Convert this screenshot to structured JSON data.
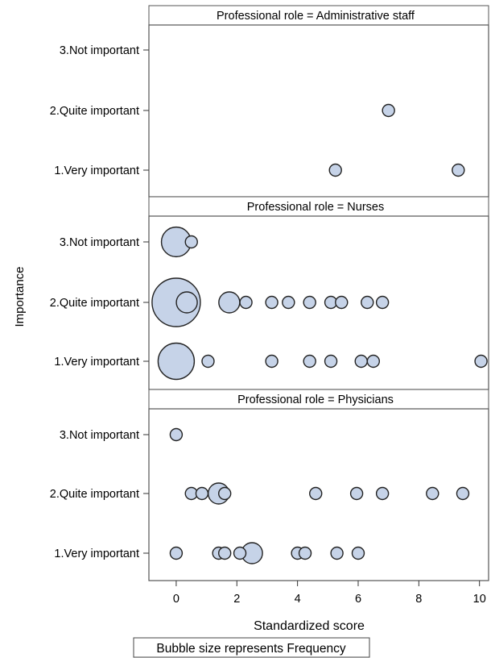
{
  "chart_data": {
    "type": "scatter",
    "encoding": "bubble",
    "ylabel": "Importance",
    "xlabel": "Standardized score",
    "size_note": "Bubble size represents Frequency",
    "categories": [
      "3.Not important",
      "2.Quite important",
      "1.Very important"
    ],
    "xlim": [
      -0.9,
      10.3
    ],
    "xticks": [
      0,
      2,
      4,
      6,
      8,
      10
    ],
    "grid": false,
    "colors": {
      "fill": "#c6d3e8",
      "stroke": "#222222",
      "frame": "#555555"
    },
    "panels": [
      {
        "title": "Professional role = Administrative staff",
        "points": [
          {
            "x": 7.0,
            "y": "2.Quite important",
            "size": 1
          },
          {
            "x": 5.25,
            "y": "1.Very important",
            "size": 1
          },
          {
            "x": 9.3,
            "y": "1.Very important",
            "size": 1
          }
        ]
      },
      {
        "title": "Professional role = Nurses",
        "points": [
          {
            "x": 0.0,
            "y": "3.Not important",
            "size": 6
          },
          {
            "x": 0.5,
            "y": "3.Not important",
            "size": 1
          },
          {
            "x": 0.0,
            "y": "2.Quite important",
            "size": 16
          },
          {
            "x": 0.35,
            "y": "2.Quite important",
            "size": 3
          },
          {
            "x": 1.75,
            "y": "2.Quite important",
            "size": 3
          },
          {
            "x": 2.3,
            "y": "2.Quite important",
            "size": 1
          },
          {
            "x": 3.15,
            "y": "2.Quite important",
            "size": 1
          },
          {
            "x": 3.7,
            "y": "2.Quite important",
            "size": 1
          },
          {
            "x": 4.4,
            "y": "2.Quite important",
            "size": 1
          },
          {
            "x": 5.1,
            "y": "2.Quite important",
            "size": 1
          },
          {
            "x": 5.45,
            "y": "2.Quite important",
            "size": 1
          },
          {
            "x": 6.3,
            "y": "2.Quite important",
            "size": 1
          },
          {
            "x": 6.8,
            "y": "2.Quite important",
            "size": 1
          },
          {
            "x": 0.0,
            "y": "1.Very important",
            "size": 9
          },
          {
            "x": 1.05,
            "y": "1.Very important",
            "size": 1
          },
          {
            "x": 3.15,
            "y": "1.Very important",
            "size": 1
          },
          {
            "x": 4.4,
            "y": "1.Very important",
            "size": 1
          },
          {
            "x": 5.1,
            "y": "1.Very important",
            "size": 1
          },
          {
            "x": 6.1,
            "y": "1.Very important",
            "size": 1
          },
          {
            "x": 6.5,
            "y": "1.Very important",
            "size": 1
          },
          {
            "x": 10.05,
            "y": "1.Very important",
            "size": 1
          }
        ]
      },
      {
        "title": "Professional role = Physicians",
        "points": [
          {
            "x": 0.0,
            "y": "3.Not important",
            "size": 1
          },
          {
            "x": 0.5,
            "y": "2.Quite important",
            "size": 1
          },
          {
            "x": 0.85,
            "y": "2.Quite important",
            "size": 1
          },
          {
            "x": 1.4,
            "y": "2.Quite important",
            "size": 3
          },
          {
            "x": 1.6,
            "y": "2.Quite important",
            "size": 1
          },
          {
            "x": 4.6,
            "y": "2.Quite important",
            "size": 1
          },
          {
            "x": 5.95,
            "y": "2.Quite important",
            "size": 1
          },
          {
            "x": 6.8,
            "y": "2.Quite important",
            "size": 1
          },
          {
            "x": 8.45,
            "y": "2.Quite important",
            "size": 1
          },
          {
            "x": 9.45,
            "y": "2.Quite important",
            "size": 1
          },
          {
            "x": 0.0,
            "y": "1.Very important",
            "size": 1
          },
          {
            "x": 1.4,
            "y": "1.Very important",
            "size": 1
          },
          {
            "x": 1.6,
            "y": "1.Very important",
            "size": 1
          },
          {
            "x": 2.1,
            "y": "1.Very important",
            "size": 1
          },
          {
            "x": 2.5,
            "y": "1.Very important",
            "size": 3
          },
          {
            "x": 4.0,
            "y": "1.Very important",
            "size": 1
          },
          {
            "x": 4.25,
            "y": "1.Very important",
            "size": 1
          },
          {
            "x": 5.3,
            "y": "1.Very important",
            "size": 1
          },
          {
            "x": 6.0,
            "y": "1.Very important",
            "size": 1
          }
        ]
      }
    ]
  }
}
